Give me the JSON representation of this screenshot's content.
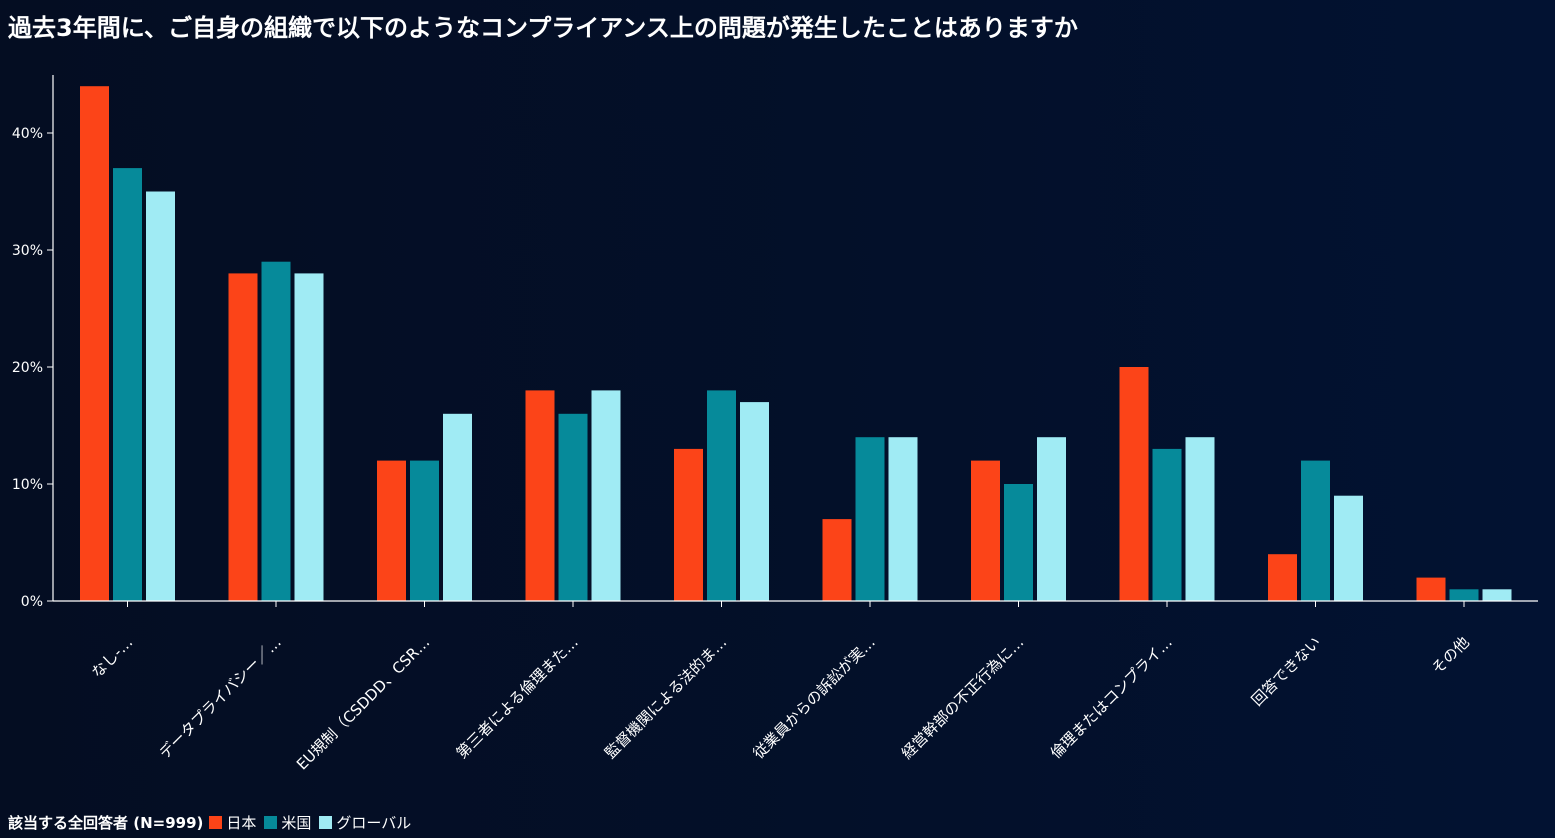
{
  "title": "過去3年間に、ご自身の組織で以下のようなコンプライアンス上の問題が発生したことはありますか",
  "legend": {
    "title": "該当する全回答者 (N=999)",
    "items": [
      {
        "label": "日本",
        "color": "#fc4418"
      },
      {
        "label": "米国",
        "color": "#068a9a"
      },
      {
        "label": "グローバル",
        "color": "#a0ebf4"
      }
    ]
  },
  "chart_data": {
    "type": "bar",
    "categories": [
      "なし-…",
      "データプライバシー／…",
      "EU規制（CSDDD、CSR…",
      "第三者による倫理また…",
      "監督機関による法的ま…",
      "従業員からの訴訟が実…",
      "経営幹部の不正行為に…",
      "倫理またはコンプライ…",
      "回答できない",
      "その他"
    ],
    "series": [
      {
        "name": "日本",
        "color": "#fc4418",
        "values": [
          44,
          28,
          12,
          18,
          13,
          7,
          12,
          20,
          4,
          2
        ]
      },
      {
        "name": "米国",
        "color": "#068a9a",
        "values": [
          37,
          29,
          12,
          16,
          18,
          14,
          10,
          13,
          12,
          1
        ]
      },
      {
        "name": "グローバル",
        "color": "#a0ebf4",
        "values": [
          35,
          28,
          16,
          18,
          17,
          14,
          14,
          14,
          9,
          1
        ]
      }
    ],
    "ylim": [
      0,
      45
    ],
    "yticks": [
      0,
      10,
      20,
      30,
      40
    ],
    "ytick_labels": [
      "0%",
      "10%",
      "20%",
      "30%",
      "40%"
    ],
    "xlabel": "",
    "ylabel": "",
    "legend_position": "bottom-left"
  }
}
